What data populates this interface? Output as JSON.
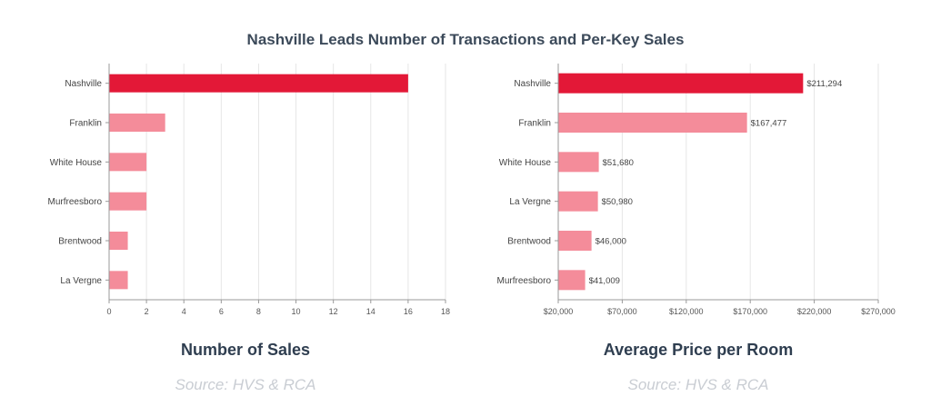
{
  "title": "Nashville Leads Number of Transactions and Per-Key Sales",
  "colors": {
    "highlight": "#e31837",
    "normal": "#f48c9a",
    "grid": "#e6e6e6",
    "axis": "#999999"
  },
  "chart_data": [
    {
      "type": "bar",
      "orientation": "horizontal",
      "caption": "Number of Sales",
      "source": "Source: HVS & RCA",
      "categories": [
        "Nashville",
        "Franklin",
        "White House",
        "Murfreesboro",
        "Brentwood",
        "La Vergne"
      ],
      "values": [
        16,
        3,
        2,
        2,
        1,
        1
      ],
      "xlim": [
        0,
        18
      ],
      "xticks": [
        0,
        2,
        4,
        6,
        8,
        10,
        12,
        14,
        16,
        18
      ],
      "xtick_labels": [
        "0",
        "2",
        "4",
        "6",
        "8",
        "10",
        "12",
        "14",
        "16",
        "18"
      ],
      "data_labels": [],
      "grid": true
    },
    {
      "type": "bar",
      "orientation": "horizontal",
      "caption": "Average Price per Room",
      "source": "Source: HVS & RCA",
      "categories": [
        "Nashville",
        "Franklin",
        "White House",
        "La Vergne",
        "Brentwood",
        "Murfreesboro"
      ],
      "values": [
        211294,
        167477,
        51680,
        50980,
        46000,
        41009
      ],
      "xlim": [
        20000,
        270000
      ],
      "xticks": [
        20000,
        70000,
        120000,
        170000,
        220000,
        270000
      ],
      "xtick_labels": [
        "$20,000",
        "$70,000",
        "$120,000",
        "$170,000",
        "$220,000",
        "$270,000"
      ],
      "data_labels": [
        "$211,294",
        "$167,477",
        "$51,680",
        "$50,980",
        "$46,000",
        "$41,009"
      ],
      "grid": true
    }
  ]
}
